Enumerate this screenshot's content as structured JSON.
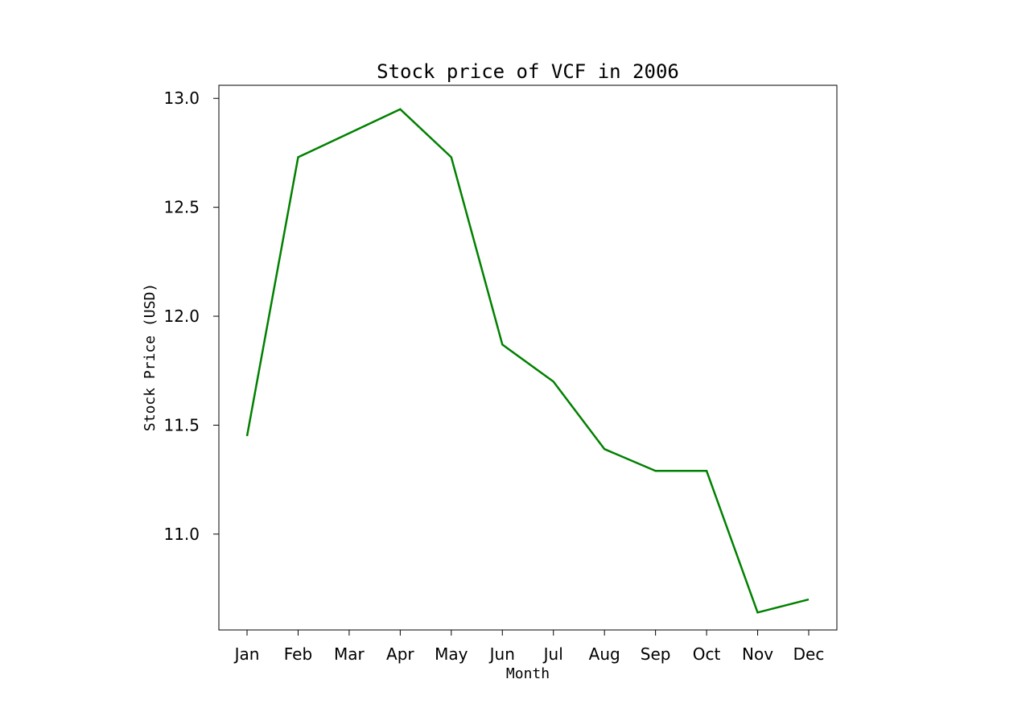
{
  "chart_data": {
    "type": "line",
    "title": "Stock price of VCF in 2006",
    "xlabel": "Month",
    "ylabel": "Stock Price (USD)",
    "categories": [
      "Jan",
      "Feb",
      "Mar",
      "Apr",
      "May",
      "Jun",
      "Jul",
      "Aug",
      "Sep",
      "Oct",
      "Nov",
      "Dec"
    ],
    "series": [
      {
        "color": "#008000",
        "values": [
          11.45,
          12.73,
          12.84,
          12.95,
          12.73,
          11.87,
          11.7,
          11.39,
          11.29,
          11.29,
          10.64,
          10.7
        ]
      }
    ],
    "yticks": [
      11.0,
      11.5,
      12.0,
      12.5,
      13.0
    ],
    "ytick_labels": [
      "11.0",
      "11.5",
      "12.0",
      "12.5",
      "13.0"
    ],
    "ylim": [
      10.56,
      13.06
    ],
    "grid": false,
    "legend": "none"
  }
}
